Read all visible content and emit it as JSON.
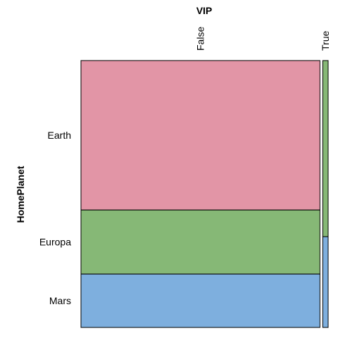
{
  "chart_data": {
    "type": "mosaic",
    "title": "",
    "x_variable": "VIP",
    "y_variable": "HomePlanet",
    "x_categories": [
      "False",
      "True"
    ],
    "y_categories": [
      "Earth",
      "Europa",
      "Mars"
    ],
    "column_proportions": [
      0.978,
      0.022
    ],
    "cell_proportions": {
      "False": [
        0.56,
        0.24,
        0.2
      ],
      "True": [
        0.0,
        0.66,
        0.34
      ]
    },
    "colors": {
      "Earth": "#e295a6",
      "Europa": "#86b876",
      "Mars": "#7eafde"
    }
  }
}
